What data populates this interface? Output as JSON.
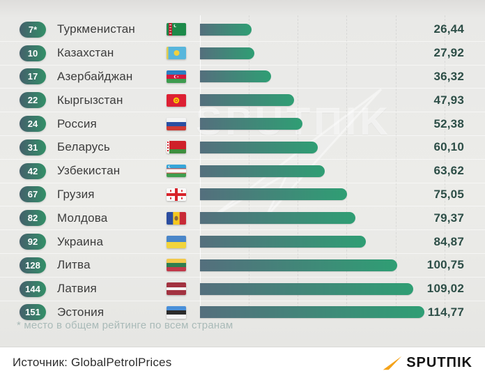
{
  "chart_data": {
    "type": "bar",
    "orientation": "horizontal",
    "title": "",
    "footnote": "* место в общем рейтинге по всем странам",
    "source": "GlobalPetrolPrices",
    "xlim": [
      0,
      125
    ],
    "gridline_step": 25,
    "gridlines": [
      0,
      25,
      50,
      75,
      100,
      125
    ],
    "max_value": 114.77,
    "legend": "none",
    "rows": [
      {
        "rank": "7*",
        "country": "Туркменистан",
        "flag": "turkmenistan",
        "value": 26.44,
        "label": "26,44"
      },
      {
        "rank": "10",
        "country": "Казахстан",
        "flag": "kazakhstan",
        "value": 27.92,
        "label": "27,92"
      },
      {
        "rank": "17",
        "country": "Азербайджан",
        "flag": "azerbaijan",
        "value": 36.32,
        "label": "36,32"
      },
      {
        "rank": "22",
        "country": "Кыргызстан",
        "flag": "kyrgyzstan",
        "value": 47.93,
        "label": "47,93"
      },
      {
        "rank": "24",
        "country": "Россия",
        "flag": "russia",
        "value": 52.38,
        "label": "52,38"
      },
      {
        "rank": "31",
        "country": "Беларусь",
        "flag": "belarus",
        "value": 60.1,
        "label": "60,10"
      },
      {
        "rank": "42",
        "country": "Узбекистан",
        "flag": "uzbekistan",
        "value": 63.62,
        "label": "63,62"
      },
      {
        "rank": "67",
        "country": "Грузия",
        "flag": "georgia",
        "value": 75.05,
        "label": "75,05"
      },
      {
        "rank": "82",
        "country": "Молдова",
        "flag": "moldova",
        "value": 79.37,
        "label": "79,37"
      },
      {
        "rank": "92",
        "country": "Украина",
        "flag": "ukraine",
        "value": 84.87,
        "label": "84,87"
      },
      {
        "rank": "128",
        "country": "Литва",
        "flag": "lithuania",
        "value": 100.75,
        "label": "100,75"
      },
      {
        "rank": "144",
        "country": "Латвия",
        "flag": "latvia",
        "value": 109.02,
        "label": "109,02"
      },
      {
        "rank": "151",
        "country": "Эстония",
        "flag": "estonia",
        "value": 114.77,
        "label": "114,77"
      }
    ]
  },
  "watermark": "SPUTΠIK",
  "footer": {
    "source_label": "Источник: GlobalPetrolPrices",
    "logo_text": "SPUTΠIK"
  },
  "colors": {
    "bar_gradient_start": "#546f7d",
    "bar_gradient_end": "#2f9e74",
    "badge_gradient_start": "#44606b",
    "badge_gradient_end": "#338f68",
    "value_text": "#2d4e47",
    "country_text": "#3c3c3c",
    "footnote_text": "#a9bab8",
    "panel_bg": "#eaeae8",
    "footer_bg": "#ffffff",
    "logo_orange": "#f5a31a"
  }
}
